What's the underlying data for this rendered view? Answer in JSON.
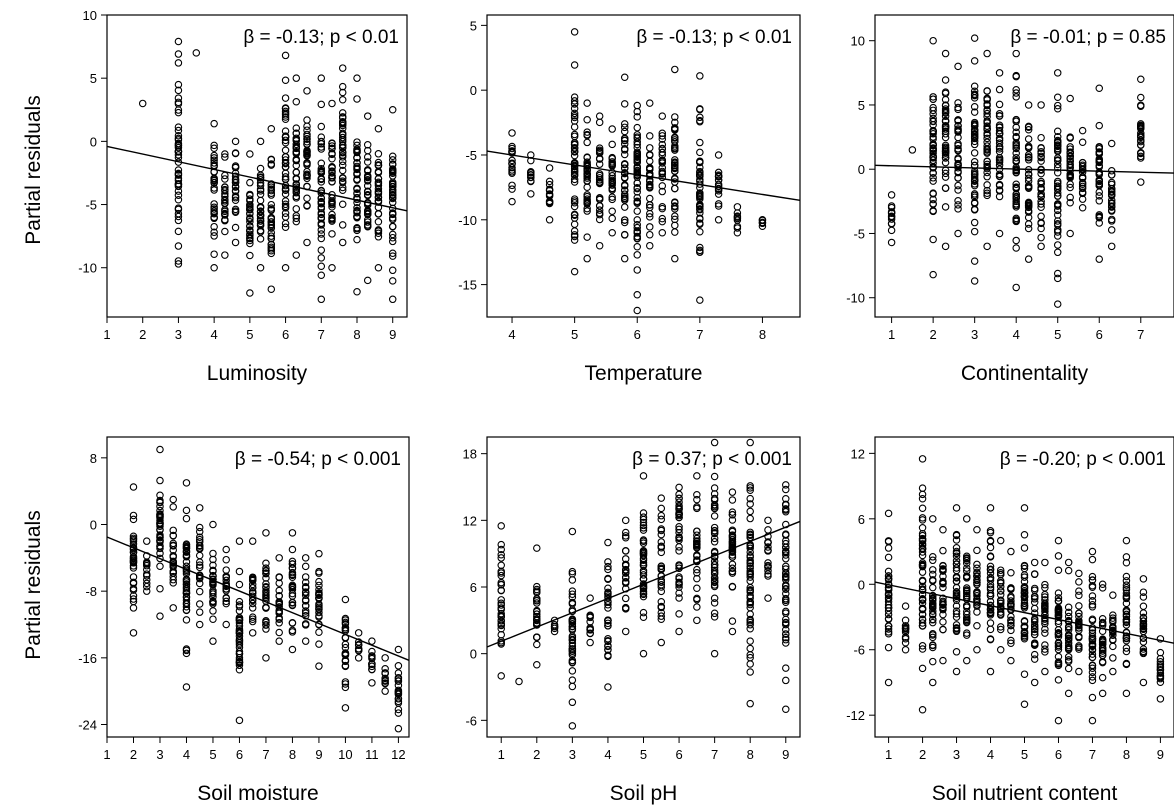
{
  "ylabel": "Partial residuals",
  "chart_data": [
    {
      "type": "scatter",
      "title": "",
      "xlabel": "Luminosity",
      "ylabel": "Partial residuals",
      "annotation": "β = -0.13; p < 0.01",
      "xlim": [
        1,
        9.4
      ],
      "ylim": [
        -13.9,
        10
      ],
      "x_ticks": [
        1,
        2,
        3,
        4,
        5,
        6,
        7,
        8,
        9
      ],
      "y_ticks": [
        -10,
        -5,
        0,
        5,
        10
      ],
      "x_tick_labels": [
        "1",
        "2",
        "3",
        "4",
        "5",
        "6",
        "7",
        "8",
        "9"
      ],
      "y_tick_labels": [
        "-10",
        "-5",
        "0",
        "5",
        "10"
      ],
      "fit_line": [
        {
          "x": 1,
          "y": -0.4
        },
        {
          "x": 9.4,
          "y": -5.5
        }
      ],
      "x_values": [
        2,
        3,
        3.5,
        4,
        4.3,
        4.6,
        5,
        5.3,
        5.6,
        6,
        6.3,
        6.6,
        7,
        7.3,
        7.6,
        8,
        8.3,
        8.6,
        9
      ],
      "y_range_at_x": [
        [
          3,
          3
        ],
        [
          -9.7,
          7.9
        ],
        [
          7,
          7
        ],
        [
          -10,
          1.4
        ],
        [
          -9,
          -1
        ],
        [
          -8,
          0
        ],
        [
          -12,
          -1
        ],
        [
          -10,
          0
        ],
        [
          -11.7,
          1
        ],
        [
          -10,
          6.8
        ],
        [
          -9,
          5
        ],
        [
          -8,
          4
        ],
        [
          -12.5,
          5
        ],
        [
          -10,
          3
        ],
        [
          -8,
          5.8
        ],
        [
          -11.9,
          5
        ],
        [
          -11,
          2
        ],
        [
          -10,
          1
        ],
        [
          -12.5,
          2.5
        ]
      ]
    },
    {
      "type": "scatter",
      "title": "",
      "xlabel": "Temperature",
      "ylabel": "",
      "annotation": "β = -0.13; p < 0.01",
      "xlim": [
        3.6,
        8.6
      ],
      "ylim": [
        -17.5,
        5.8
      ],
      "x_ticks": [
        4,
        5,
        6,
        7,
        8
      ],
      "y_ticks": [
        -15,
        -10,
        -5,
        0,
        5
      ],
      "x_tick_labels": [
        "4",
        "5",
        "6",
        "7",
        "8"
      ],
      "y_tick_labels": [
        "-15",
        "-10",
        "-5",
        "0",
        "5"
      ],
      "fit_line": [
        {
          "x": 3.6,
          "y": -4.7
        },
        {
          "x": 8.6,
          "y": -8.5
        }
      ],
      "x_values": [
        4,
        4.3,
        4.6,
        5,
        5.2,
        5.4,
        5.6,
        5.8,
        6,
        6.2,
        6.4,
        6.6,
        7,
        7.3,
        7.6,
        8
      ],
      "y_range_at_x": [
        [
          -8.6,
          -3.3
        ],
        [
          -8,
          -5
        ],
        [
          -10,
          -6
        ],
        [
          -14,
          4.5
        ],
        [
          -13,
          -1
        ],
        [
          -12,
          -2
        ],
        [
          -11,
          -3
        ],
        [
          -13,
          1
        ],
        [
          -17,
          3.4
        ],
        [
          -12,
          -1
        ],
        [
          -11,
          -2
        ],
        [
          -13,
          1.6
        ],
        [
          -16.2,
          1.1
        ],
        [
          -10,
          -5
        ],
        [
          -11,
          -9
        ],
        [
          -10.5,
          -10
        ]
      ]
    },
    {
      "type": "scatter",
      "title": "",
      "xlabel": "Continentality",
      "ylabel": "",
      "annotation": "β = -0.01; p = 0.85",
      "xlim": [
        0.6,
        7.8
      ],
      "ylim": [
        -11.5,
        12
      ],
      "x_ticks": [
        1,
        2,
        3,
        4,
        5,
        6,
        7
      ],
      "y_ticks": [
        -10,
        -5,
        0,
        5,
        10
      ],
      "x_tick_labels": [
        "1",
        "2",
        "3",
        "4",
        "5",
        "6",
        "7"
      ],
      "y_tick_labels": [
        "-10",
        "-5",
        "0",
        "5",
        "10"
      ],
      "fit_line": [
        {
          "x": 0.6,
          "y": 0.3
        },
        {
          "x": 7.8,
          "y": -0.3
        }
      ],
      "x_values": [
        1,
        1.5,
        2,
        2.3,
        2.6,
        3,
        3.3,
        3.6,
        4,
        4.3,
        4.6,
        5,
        5.3,
        5.6,
        6,
        6.3,
        7
      ],
      "y_range_at_x": [
        [
          -5.7,
          -2
        ],
        [
          1.5,
          1.5
        ],
        [
          -8.2,
          10
        ],
        [
          -6,
          9
        ],
        [
          -5,
          8
        ],
        [
          -8.7,
          10.2
        ],
        [
          -6,
          9
        ],
        [
          -5,
          7.5
        ],
        [
          -9.2,
          9
        ],
        [
          -7,
          5
        ],
        [
          -6,
          5
        ],
        [
          -10.5,
          7.5
        ],
        [
          -5,
          5.5
        ],
        [
          -3,
          3
        ],
        [
          -7,
          6.3
        ],
        [
          -6,
          2
        ],
        [
          -1,
          7
        ]
      ]
    },
    {
      "type": "scatter",
      "title": "",
      "xlabel": "Soil moisture",
      "ylabel": "Partial residuals",
      "annotation": "β = -0.54; p < 0.001",
      "xlim": [
        1,
        12.4
      ],
      "ylim": [
        -25.5,
        10.5
      ],
      "x_ticks": [
        1,
        2,
        3,
        4,
        5,
        6,
        7,
        8,
        9,
        10,
        11,
        12
      ],
      "y_ticks": [
        -24,
        -16,
        -8,
        0,
        8
      ],
      "x_tick_labels": [
        "1",
        "2",
        "3",
        "4",
        "5",
        "6",
        "7",
        "8",
        "9",
        "10",
        "11",
        "12"
      ],
      "y_tick_labels": [
        "-24",
        "-16",
        "-8",
        "0",
        "8"
      ],
      "fit_line": [
        {
          "x": 1,
          "y": -1.5
        },
        {
          "x": 12.4,
          "y": -16.3
        }
      ],
      "x_values": [
        2,
        2.5,
        3,
        3.5,
        4,
        4.5,
        5,
        5.5,
        6,
        6.5,
        7,
        7.5,
        8,
        8.5,
        9,
        10,
        10.5,
        11,
        11.5,
        12
      ],
      "y_range_at_x": [
        [
          -13,
          4.5
        ],
        [
          -8,
          -2
        ],
        [
          -11,
          9
        ],
        [
          -10,
          3
        ],
        [
          -19.5,
          5
        ],
        [
          -12,
          2
        ],
        [
          -14,
          0
        ],
        [
          -12,
          -3
        ],
        [
          -23.5,
          -2
        ],
        [
          -13,
          -2
        ],
        [
          -16,
          -1
        ],
        [
          -14,
          -4
        ],
        [
          -15,
          -1
        ],
        [
          -14,
          -4
        ],
        [
          -17,
          -3.5
        ],
        [
          -22,
          -9
        ],
        [
          -16,
          -13
        ],
        [
          -19,
          -14
        ],
        [
          -20,
          -16
        ],
        [
          -24.5,
          -15
        ]
      ]
    },
    {
      "type": "scatter",
      "title": "",
      "xlabel": "Soil pH",
      "ylabel": "",
      "annotation": "β = 0.37; p < 0.001",
      "xlim": [
        0.6,
        9.4
      ],
      "ylim": [
        -7.5,
        19.5
      ],
      "x_ticks": [
        1,
        2,
        3,
        4,
        5,
        6,
        7,
        8,
        9
      ],
      "y_ticks": [
        -6,
        0,
        6,
        12,
        18
      ],
      "x_tick_labels": [
        "1",
        "2",
        "3",
        "4",
        "5",
        "6",
        "7",
        "8",
        "9"
      ],
      "y_tick_labels": [
        "-6",
        "0",
        "6",
        "12",
        "18"
      ],
      "fit_line": [
        {
          "x": 0.6,
          "y": 0.6
        },
        {
          "x": 9.4,
          "y": 11.9
        }
      ],
      "x_values": [
        1,
        1.5,
        2,
        2.5,
        3,
        3.5,
        4,
        4.5,
        5,
        5.5,
        6,
        6.5,
        7,
        7.5,
        8,
        8.5,
        9
      ],
      "y_range_at_x": [
        [
          -2,
          11.5
        ],
        [
          -2.5,
          -2.5
        ],
        [
          -1,
          9.5
        ],
        [
          2,
          3
        ],
        [
          -6.5,
          11
        ],
        [
          1,
          5
        ],
        [
          -3,
          10
        ],
        [
          2,
          12
        ],
        [
          0,
          16
        ],
        [
          1,
          14
        ],
        [
          2,
          18
        ],
        [
          3,
          16
        ],
        [
          0,
          19
        ],
        [
          2,
          17
        ],
        [
          -4.5,
          19
        ],
        [
          5,
          12
        ],
        [
          -5,
          17.5
        ]
      ]
    },
    {
      "type": "scatter",
      "title": "",
      "xlabel": "Soil nutrient content",
      "ylabel": "",
      "annotation": "β = -0.20; p < 0.001",
      "xlim": [
        0.6,
        9.4
      ],
      "ylim": [
        -14,
        13.5
      ],
      "x_ticks": [
        1,
        2,
        3,
        4,
        5,
        6,
        7,
        8,
        9
      ],
      "y_ticks": [
        -12,
        -6,
        0,
        6,
        12
      ],
      "x_tick_labels": [
        "1",
        "2",
        "3",
        "4",
        "5",
        "6",
        "7",
        "8",
        "9"
      ],
      "y_tick_labels": [
        "-12",
        "-6",
        "0",
        "6",
        "12"
      ],
      "fit_line": [
        {
          "x": 0.6,
          "y": 0.2
        },
        {
          "x": 9.4,
          "y": -5.4
        }
      ],
      "x_values": [
        1,
        1.5,
        2,
        2.3,
        2.6,
        3,
        3.3,
        3.6,
        4,
        4.3,
        4.6,
        5,
        5.3,
        5.6,
        6,
        6.3,
        6.6,
        7,
        7.3,
        7.6,
        8,
        8.5,
        9
      ],
      "y_range_at_x": [
        [
          -9,
          6.5
        ],
        [
          -6,
          -2
        ],
        [
          -11.5,
          11.5
        ],
        [
          -9,
          6
        ],
        [
          -7,
          5
        ],
        [
          -8,
          7
        ],
        [
          -7,
          6
        ],
        [
          -6,
          5
        ],
        [
          -8,
          7
        ],
        [
          -6,
          4
        ],
        [
          -7,
          3
        ],
        [
          -11,
          7
        ],
        [
          -9,
          2
        ],
        [
          -8,
          2
        ],
        [
          -12.5,
          4
        ],
        [
          -10,
          2
        ],
        [
          -8,
          1
        ],
        [
          -12.5,
          3
        ],
        [
          -10,
          0
        ],
        [
          -8,
          -1
        ],
        [
          -10,
          4
        ],
        [
          -9,
          0.5
        ],
        [
          -10.5,
          -5
        ]
      ]
    }
  ]
}
